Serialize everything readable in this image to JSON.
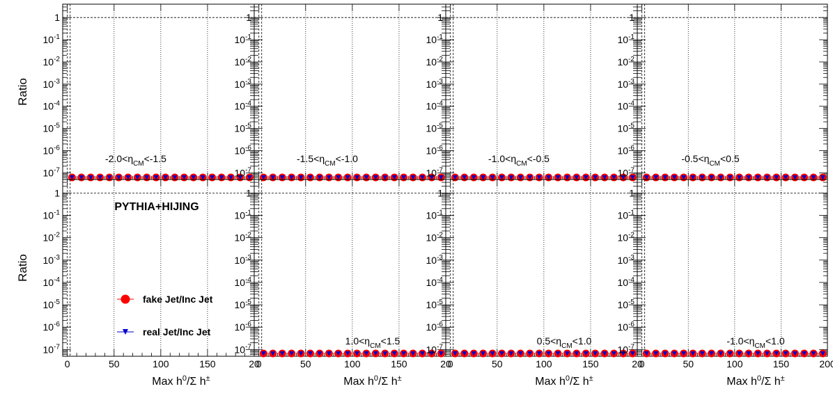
{
  "chart_data": {
    "type": "scatter",
    "layout": "2 rows x 4 columns of panels",
    "ylabel": "Ratio",
    "xlabel": "Max h0/Σ h±",
    "x_ticks": [
      "0",
      "50",
      "100",
      "150",
      "20"
    ],
    "x_ticks_last": [
      "0",
      "50",
      "100",
      "150",
      "200"
    ],
    "ylim": [
      5e-08,
      4
    ],
    "yscale": "log",
    "xlim": [
      -5,
      200
    ],
    "y_tick_labels": [
      "1",
      "10-1",
      "10-2",
      "10-3",
      "10-4",
      "10-5",
      "10-6",
      "10-7"
    ],
    "reference_line_y": 1,
    "legend": {
      "title": "PYTHIA+HIJING",
      "entries": [
        {
          "label": "fake Jet/Inc Jet",
          "color": "#ff0000",
          "marker": "circle"
        },
        {
          "label": "real Jet/Inc Jet",
          "color": "#0000cc",
          "marker": "triangle-down"
        }
      ]
    },
    "x": [
      5,
      15,
      25,
      35,
      45,
      55,
      65,
      75,
      85,
      95,
      105,
      115,
      125,
      135,
      145,
      155,
      165,
      175,
      185,
      195
    ],
    "panels": [
      {
        "label": "-2.0<ηCM<-1.5",
        "lab_pre": "-2.0<η",
        "lab_sub": "CM",
        "lab_post": "<-1.5"
      },
      {
        "label": "-1.5<ηCM<-1.0",
        "lab_pre": "-1.5<η",
        "lab_sub": "CM",
        "lab_post": "<-1.0"
      },
      {
        "label": "-1.0<ηCM<-0.5",
        "lab_pre": "-1.0<η",
        "lab_sub": "CM",
        "lab_post": "<-0.5"
      },
      {
        "label": "-0.5<ηCM<0.5",
        "lab_pre": "-0.5<η",
        "lab_sub": "CM",
        "lab_post": "<0.5"
      },
      {
        "label": "",
        "lab_pre": "",
        "lab_sub": "",
        "lab_post": ""
      },
      {
        "label": "1.0<ηCM<1.5",
        "lab_pre": "1.0<η",
        "lab_sub": "CM",
        "lab_post": "<1.5"
      },
      {
        "label": "0.5<ηCM<1.0",
        "lab_pre": "0.5<η",
        "lab_sub": "CM",
        "lab_post": "<1.0"
      },
      {
        "label": "-1.0<ηCM<1.0",
        "lab_pre": "-1.0<η",
        "lab_sub": "CM",
        "lab_post": "<1.0"
      }
    ]
  }
}
